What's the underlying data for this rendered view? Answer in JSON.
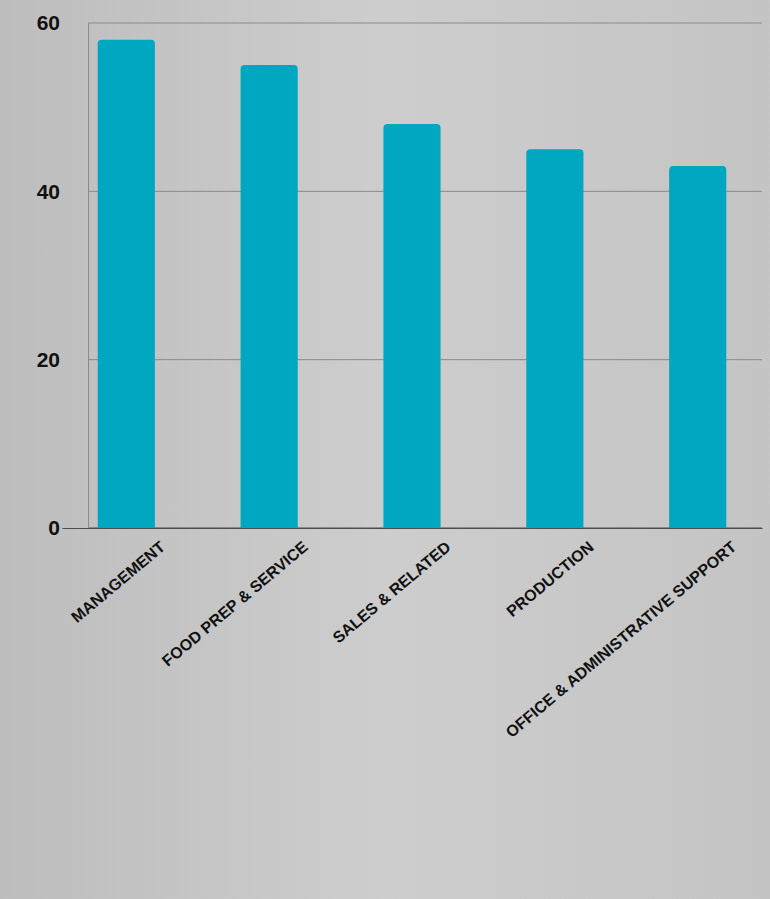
{
  "chart_data": {
    "type": "bar",
    "categories": [
      "MANAGEMENT",
      "FOOD PREP & SERVICE",
      "SALES & RELATED",
      "PRODUCTION",
      "OFFICE & ADMINISTRATIVE SUPPORT"
    ],
    "values": [
      58,
      55,
      48,
      45,
      43
    ],
    "color": "#00a7c0",
    "ylim": [
      0,
      60
    ],
    "yticks": [
      0,
      20,
      40,
      60
    ],
    "grid": true
  }
}
